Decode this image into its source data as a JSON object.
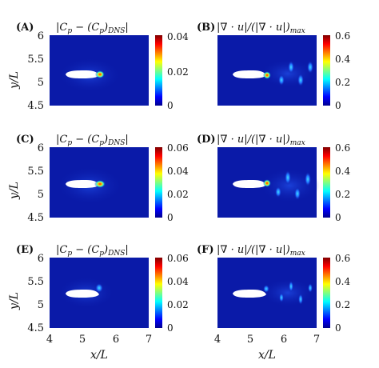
{
  "figure": {
    "panels": [
      {
        "id": "A",
        "tag": "(A)",
        "title": "|C_p − (C_p)_{DNS}|",
        "cbar_ticks": [
          "0",
          "0.02",
          "0.04"
        ]
      },
      {
        "id": "B",
        "tag": "(B)",
        "title": "|∇ · u|/(|∇ · u|)_{max}",
        "cbar_ticks": [
          "0",
          "0.2",
          "0.4",
          "0.6"
        ]
      },
      {
        "id": "C",
        "tag": "(C)",
        "title": "|C_p − (C_p)_{DNS}|",
        "cbar_ticks": [
          "0",
          "0.02",
          "0.04",
          "0.06"
        ]
      },
      {
        "id": "D",
        "tag": "(D)",
        "title": "|∇ · u|/(|∇ · u|)_{max}",
        "cbar_ticks": [
          "0",
          "0.2",
          "0.4",
          "0.6"
        ]
      },
      {
        "id": "E",
        "tag": "(E)",
        "title": "|C_p − (C_p)_{DNS}|",
        "cbar_ticks": [
          "0",
          "0.02",
          "0.04",
          "0.06"
        ]
      },
      {
        "id": "F",
        "tag": "(F)",
        "title": "|∇ · u|/(|∇ · u|)_{max}",
        "cbar_ticks": [
          "0",
          "0.2",
          "0.4",
          "0.6"
        ]
      }
    ],
    "y_axis_label": "y/L",
    "x_axis_label": "x/L",
    "y_ticks": [
      "4.5",
      "5",
      "5.5",
      "6"
    ],
    "x_ticks": [
      "4",
      "5",
      "6",
      "7"
    ]
  },
  "colors": {
    "background_field": "#0a1aa8",
    "body_fill": "#ffffff",
    "colormap": [
      "#00008f",
      "#0000ff",
      "#0080ff",
      "#00ffff",
      "#80ff80",
      "#ffff00",
      "#ff8000",
      "#ff0000",
      "#800000"
    ]
  }
}
